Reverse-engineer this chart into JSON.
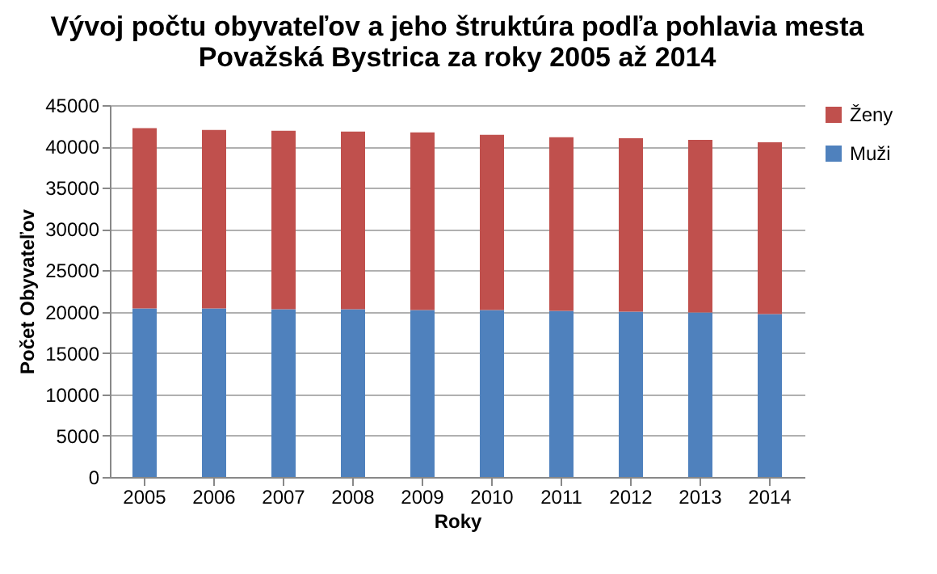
{
  "chart_data": {
    "type": "bar",
    "title": "Vývoj počtu obyvateľov a jeho štruktúra podľa pohlavia mesta Považská Bystrica za roky 2005 až 2014",
    "xlabel": "Roky",
    "ylabel": "Počet Obyvateľov",
    "categories": [
      "2005",
      "2006",
      "2007",
      "2008",
      "2009",
      "2010",
      "2011",
      "2012",
      "2013",
      "2014"
    ],
    "series": [
      {
        "name": "Muži",
        "color": "#4f81bd",
        "values": [
          20400,
          20400,
          20300,
          20300,
          20200,
          20200,
          20100,
          20000,
          19900,
          19700
        ]
      },
      {
        "name": "Ženy",
        "color": "#c0504d",
        "values": [
          21800,
          21600,
          21600,
          21500,
          21500,
          21200,
          21000,
          21000,
          20900,
          20800
        ]
      }
    ],
    "stacked": true,
    "ylim": [
      0,
      45000
    ],
    "yticks": [
      0,
      5000,
      10000,
      15000,
      20000,
      25000,
      30000,
      35000,
      40000,
      45000
    ],
    "grid": "y",
    "legend": "right"
  }
}
